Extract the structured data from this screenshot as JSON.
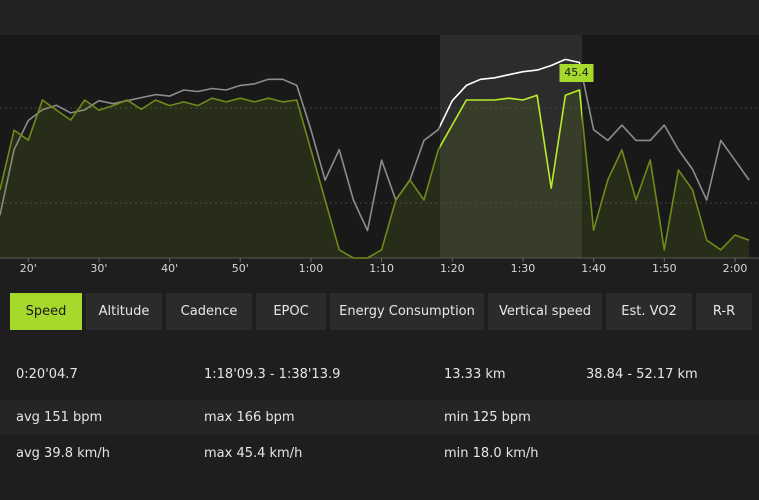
{
  "chart_data": {
    "type": "line",
    "x": [
      16,
      18,
      20,
      22,
      24,
      26,
      28,
      30,
      32,
      34,
      36,
      38,
      40,
      42,
      44,
      46,
      48,
      50,
      52,
      54,
      56,
      58,
      60,
      62,
      64,
      66,
      68,
      70,
      72,
      74,
      76,
      78,
      80,
      82,
      84,
      86,
      88,
      90,
      92,
      94,
      96,
      98,
      100,
      102,
      104,
      106,
      108,
      110,
      112,
      114,
      116,
      118,
      120,
      122
    ],
    "xlim": [
      16,
      123.4
    ],
    "xticks": [
      {
        "value": 20,
        "label": "20'"
      },
      {
        "value": 30,
        "label": "30'"
      },
      {
        "value": 40,
        "label": "40'"
      },
      {
        "value": 50,
        "label": "50'"
      },
      {
        "value": 60,
        "label": "1:00"
      },
      {
        "value": 70,
        "label": "1:10"
      },
      {
        "value": 80,
        "label": "1:20"
      },
      {
        "value": 90,
        "label": "1:30"
      },
      {
        "value": 100,
        "label": "1:40"
      },
      {
        "value": 110,
        "label": "1:50"
      },
      {
        "value": 120,
        "label": "2:00"
      }
    ],
    "ylim": [
      35,
      181
    ],
    "y2lim": [
      0,
      60
    ],
    "series": [
      {
        "color": "#8c8c8c",
        "values": [
          63,
          106,
          125,
          132,
          135,
          130,
          132,
          138,
          136,
          138,
          140,
          142,
          141,
          145,
          144,
          146,
          145,
          148,
          149,
          152,
          152,
          148,
          119,
          86,
          106,
          73,
          53,
          99,
          73,
          86,
          112,
          119,
          138,
          148,
          152,
          153,
          155,
          157,
          158,
          161,
          165,
          163,
          119,
          112,
          122,
          112,
          112,
          122,
          106,
          93,
          73,
          112,
          99,
          86
        ]
      },
      {
        "color": "#6e8a1a",
        "axis": "y2",
        "values": [
          18.3,
          34.4,
          31.7,
          42.5,
          39.8,
          37.1,
          42.5,
          39.8,
          41,
          42.5,
          40,
          42.5,
          41,
          42,
          41,
          43,
          42,
          43,
          42,
          43,
          42,
          42.5,
          29.1,
          15.6,
          2.2,
          0,
          0,
          2.2,
          15.6,
          21.0,
          15.6,
          29.1,
          35.8,
          42.5,
          42.5,
          42.5,
          43.0,
          42.5,
          43.8,
          18.8,
          43.8,
          45.2,
          7.5,
          21.0,
          29.1,
          15.6,
          26.4,
          2.2,
          23.7,
          18.3,
          4.8,
          2.2,
          6.2,
          4.8
        ]
      }
    ],
    "annotations": [
      {
        "text": "45.4"
      }
    ]
  },
  "tabs": [
    {
      "label": "Speed",
      "active": true
    },
    {
      "label": "Altitude"
    },
    {
      "label": "Cadence"
    },
    {
      "label": "EPOC"
    },
    {
      "label": "Energy Consumption"
    },
    {
      "label": "Vertical speed"
    },
    {
      "label": "Est. VO2"
    },
    {
      "label": "R-R"
    }
  ],
  "stats": {
    "rows": [
      [
        "0:20'04.7",
        "1:18'09.3 - 1:38'13.9",
        "13.33 km",
        "38.84 - 52.17 km"
      ],
      [
        "avg 151 bpm",
        "max 166 bpm",
        "min 125 bpm"
      ],
      [
        "avg 39.8 km/h",
        "max 45.4 km/h",
        "min 18.0 km/h"
      ]
    ]
  }
}
